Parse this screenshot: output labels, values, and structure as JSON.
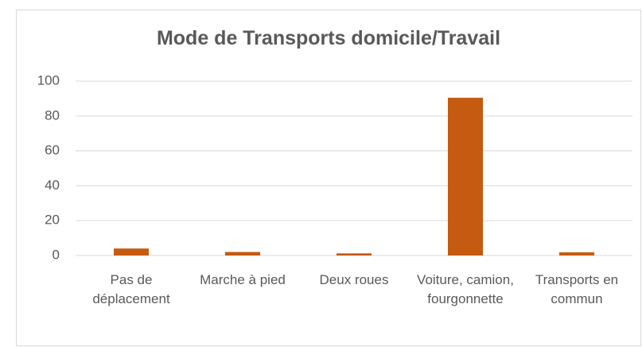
{
  "chart_data": {
    "type": "bar",
    "title": "Mode de Transports domicile/Travail",
    "categories": [
      "Pas de déplacement",
      "Marche à pied",
      "Deux roues",
      "Voiture, camion, fourgonnette",
      "Transports en commun"
    ],
    "values": [
      4,
      2,
      1.2,
      90.5,
      1.8
    ],
    "color": "#c55a11",
    "ylim": [
      0,
      100
    ],
    "yticks": [
      0,
      20,
      40,
      60,
      80,
      100
    ],
    "grid": true
  }
}
